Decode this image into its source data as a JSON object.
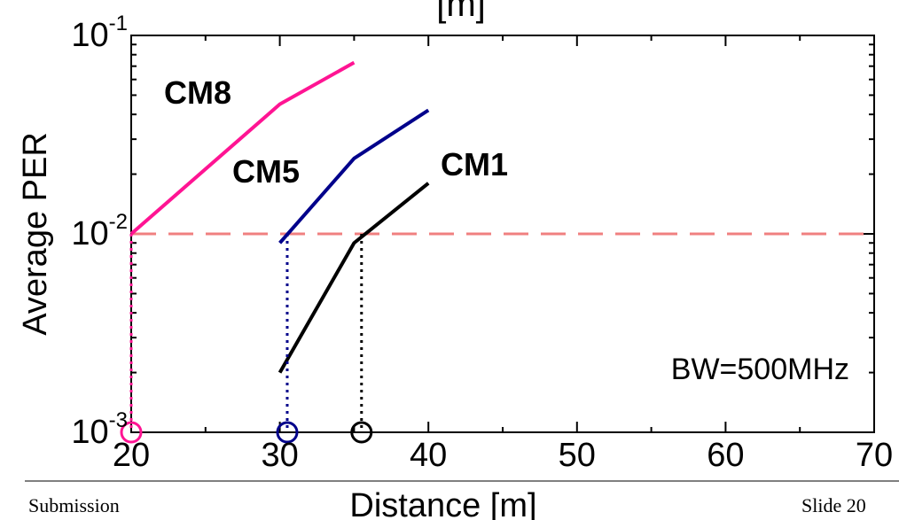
{
  "chart_data": {
    "type": "line",
    "title_fragment": "[m]",
    "xlabel": "Distance [m]",
    "ylabel": "Average PER",
    "xlim": [
      20,
      70
    ],
    "ylim": [
      0.001,
      0.1
    ],
    "y_scale": "log",
    "x_ticks": [
      {
        "value": 20,
        "label": "20"
      },
      {
        "value": 30,
        "label": "30"
      },
      {
        "value": 40,
        "label": "40"
      },
      {
        "value": 50,
        "label": "50"
      },
      {
        "value": 60,
        "label": "60"
      },
      {
        "value": 70,
        "label": "70"
      }
    ],
    "y_ticks": [
      {
        "value": 0.1,
        "base": "10",
        "exp": "-1"
      },
      {
        "value": 0.01,
        "base": "10",
        "exp": "-2"
      },
      {
        "value": 0.001,
        "base": "10",
        "exp": "-3"
      }
    ],
    "series": [
      {
        "name": "CM8",
        "color": "#ff1493",
        "x": [
          20,
          30,
          35
        ],
        "y": [
          0.01,
          0.045,
          0.073
        ]
      },
      {
        "name": "CM5",
        "color": "#00008b",
        "x": [
          30,
          35,
          40
        ],
        "y": [
          0.009,
          0.024,
          0.042
        ]
      },
      {
        "name": "CM1",
        "color": "#000000",
        "x": [
          30,
          35,
          40
        ],
        "y": [
          0.002,
          0.009,
          0.018
        ]
      }
    ],
    "threshold": {
      "y": 0.01,
      "color": "#f08080"
    },
    "drop_lines": [
      {
        "x": 20,
        "color": "#ff1493"
      },
      {
        "x": 30.5,
        "color": "#00008b"
      },
      {
        "x": 35.5,
        "color": "#000000"
      }
    ],
    "annotation": "BW=500MHz",
    "grid": false
  },
  "footer": {
    "left": "Submission",
    "right": "Slide 20"
  }
}
